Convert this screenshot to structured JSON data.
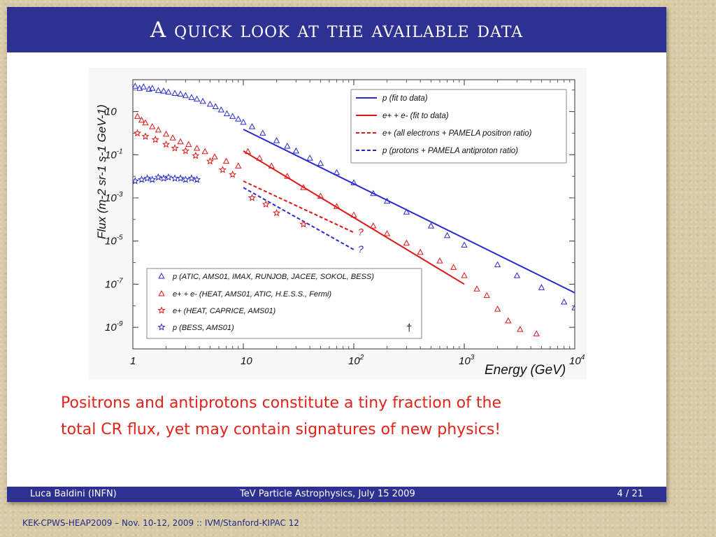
{
  "slide": {
    "title": "A quick look at the available data",
    "caption_line1": "Positrons and antiprotons constitute a tiny fraction of the",
    "caption_line2": "total CR flux, yet may contain signatures of new physics!",
    "footer_author": "Luca Baldini  (INFN)",
    "footer_event": "TeV Particle Astrophysics, July 15 2009",
    "footer_page": "4 / 21",
    "bottom_credit": "KEK-CPWS-HEAP2009 – Nov. 10-12, 2009 :: IVM/Stanford-KIPAC  12"
  },
  "colors": {
    "blue": "#2a2ad0",
    "red": "#e01515",
    "accent": "#2e3192"
  },
  "chart_data": {
    "type": "scatter",
    "title": "",
    "xlabel": "Energy (GeV)",
    "ylabel": "Flux (m-2 sr-1 s-1 GeV-1)",
    "x_scale": "log",
    "y_scale": "log",
    "xlim": [
      1,
      10000
    ],
    "ylim": [
      1e-10,
      300
    ],
    "x_ticks": [
      {
        "value": 1,
        "base": "1",
        "exp": ""
      },
      {
        "value": 10,
        "base": "10",
        "exp": ""
      },
      {
        "value": 100,
        "base": "10",
        "exp": "2"
      },
      {
        "value": 1000,
        "base": "10",
        "exp": "3"
      },
      {
        "value": 10000,
        "base": "10",
        "exp": "4"
      }
    ],
    "y_ticks": [
      {
        "value": 10,
        "base": "10",
        "exp": ""
      },
      {
        "value": 0.1,
        "base": "10",
        "exp": "-1"
      },
      {
        "value": 0.001,
        "base": "10",
        "exp": "-3"
      },
      {
        "value": 1e-05,
        "base": "10",
        "exp": "-5"
      },
      {
        "value": 1e-07,
        "base": "10",
        "exp": "-7"
      },
      {
        "value": 1e-09,
        "base": "10",
        "exp": "-9"
      }
    ],
    "lines": [
      {
        "legend": "p (fit to data)",
        "color": "#2a2ad0",
        "dash": false,
        "points": [
          [
            10,
            1.5
          ],
          [
            10000,
            4e-08
          ]
        ]
      },
      {
        "legend": "e+ + e- (fit to data)",
        "color": "#e01515",
        "dash": false,
        "points": [
          [
            10,
            0.15
          ],
          [
            1000,
            1e-07
          ]
        ]
      },
      {
        "legend": "e+ (all electrons + PAMELA positron ratio)",
        "color": "#e01515",
        "dash": true,
        "points": [
          [
            10,
            0.006
          ],
          [
            100,
            2.5e-05
          ]
        ],
        "end_label": "?"
      },
      {
        "legend": "p (protons + PAMELA antiproton ratio)",
        "color": "#2a2ad0",
        "dash": true,
        "points": [
          [
            10,
            0.003
          ],
          [
            100,
            4e-06
          ]
        ],
        "end_label": "?"
      }
    ],
    "series": [
      {
        "name": "p (ATIC, AMS01, IMAX, RUNJOB, JACEE, SOKOL, BESS)",
        "marker": "triangle",
        "color": "#2a2ad0",
        "points": [
          [
            1.05,
            150
          ],
          [
            1.15,
            120
          ],
          [
            1.25,
            140
          ],
          [
            1.4,
            110
          ],
          [
            1.5,
            120
          ],
          [
            1.7,
            95
          ],
          [
            1.9,
            90
          ],
          [
            2.1,
            80
          ],
          [
            2.4,
            70
          ],
          [
            2.7,
            65
          ],
          [
            3.0,
            55
          ],
          [
            3.4,
            45
          ],
          [
            3.8,
            38
          ],
          [
            4.3,
            30
          ],
          [
            5.0,
            22
          ],
          [
            5.6,
            17
          ],
          [
            6.3,
            12
          ],
          [
            7.1,
            8
          ],
          [
            8,
            6
          ],
          [
            9,
            4.5
          ],
          [
            10,
            3.2
          ],
          [
            12,
            2.0
          ],
          [
            15,
            1.0
          ],
          [
            20,
            0.45
          ],
          [
            25,
            0.25
          ],
          [
            30,
            0.15
          ],
          [
            40,
            0.07
          ],
          [
            50,
            0.04
          ],
          [
            70,
            0.015
          ],
          [
            100,
            0.005
          ],
          [
            150,
            0.0016
          ],
          [
            200,
            0.0007
          ],
          [
            300,
            0.00022
          ],
          [
            500,
            5e-05
          ],
          [
            700,
            1.8e-05
          ],
          [
            1000,
            6.5e-06
          ],
          [
            2000,
            8e-07
          ],
          [
            3000,
            2.5e-07
          ],
          [
            5000,
            7e-08
          ],
          [
            8000,
            1.5e-08
          ],
          [
            10000,
            8e-09
          ]
        ]
      },
      {
        "name": "e+ + e- (HEAT, AMS01, ATIC, H.E.S.S., Fermi)",
        "marker": "triangle",
        "color": "#e01515",
        "points": [
          [
            1.1,
            6
          ],
          [
            1.2,
            4
          ],
          [
            1.3,
            3
          ],
          [
            1.5,
            2
          ],
          [
            1.7,
            1.4
          ],
          [
            2,
            0.9
          ],
          [
            2.3,
            0.6
          ],
          [
            2.7,
            0.4
          ],
          [
            3.2,
            0.3
          ],
          [
            3.8,
            0.2
          ],
          [
            4.5,
            0.14
          ],
          [
            5.5,
            0.08
          ],
          [
            7,
            0.05
          ],
          [
            9,
            0.03
          ],
          [
            11,
            0.14
          ],
          [
            14,
            0.07
          ],
          [
            18,
            0.03
          ],
          [
            25,
            0.01
          ],
          [
            35,
            0.003
          ],
          [
            50,
            0.0012
          ],
          [
            70,
            0.0004
          ],
          [
            100,
            0.00016
          ],
          [
            150,
            5e-05
          ],
          [
            200,
            2.2e-05
          ],
          [
            300,
            8e-06
          ],
          [
            400,
            3e-06
          ],
          [
            600,
            1.2e-06
          ],
          [
            800,
            6e-07
          ],
          [
            1000,
            2.5e-07
          ],
          [
            1300,
            6e-08
          ],
          [
            1600,
            3e-08
          ],
          [
            2000,
            7e-09
          ],
          [
            2500,
            2e-09
          ],
          [
            3200,
            8e-10
          ],
          [
            4500,
            5e-10
          ]
        ]
      },
      {
        "name": "e+ (HEAT, CAPRICE, AMS01)",
        "marker": "star",
        "color": "#e01515",
        "points": [
          [
            1.1,
            1.0
          ],
          [
            1.3,
            0.7
          ],
          [
            1.6,
            0.5
          ],
          [
            2,
            0.3
          ],
          [
            2.4,
            0.2
          ],
          [
            3,
            0.15
          ],
          [
            3.7,
            0.09
          ],
          [
            5,
            0.05
          ],
          [
            6.5,
            0.02
          ],
          [
            8,
            0.012
          ],
          [
            12,
            0.001
          ],
          [
            16,
            0.0005
          ],
          [
            20,
            0.0002
          ],
          [
            35,
            6e-05
          ]
        ]
      },
      {
        "name": "p (BESS, AMS01)",
        "marker": "star",
        "color": "#2a2ad0",
        "points": [
          [
            1.05,
            0.006
          ],
          [
            1.2,
            0.007
          ],
          [
            1.35,
            0.008
          ],
          [
            1.5,
            0.007
          ],
          [
            1.7,
            0.009
          ],
          [
            1.9,
            0.008
          ],
          [
            2.1,
            0.009
          ],
          [
            2.4,
            0.008
          ],
          [
            2.7,
            0.008
          ],
          [
            3.0,
            0.007
          ],
          [
            3.4,
            0.008
          ],
          [
            3.8,
            0.007
          ]
        ]
      }
    ],
    "legend_upper": "top-right",
    "legend_lower": "bottom-left",
    "annotation": "†",
    "grid": false
  }
}
